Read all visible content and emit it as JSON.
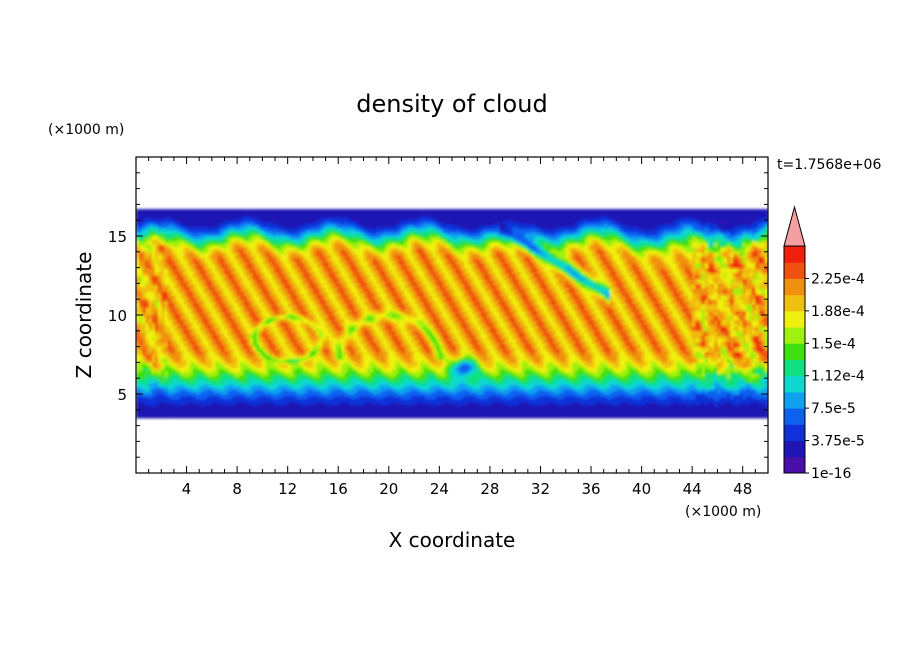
{
  "chart_data": {
    "type": "heatmap",
    "title": "density of cloud",
    "xlabel": "X coordinate",
    "ylabel": "Z coordinate",
    "x_unit": "(×1000 m)",
    "y_unit": "(×1000 m)",
    "time_label": "t=1.7568e+06",
    "xlim": [
      0,
      50
    ],
    "ylim": [
      0,
      20
    ],
    "x_ticks": [
      4,
      8,
      12,
      16,
      20,
      24,
      28,
      32,
      36,
      40,
      44,
      48
    ],
    "y_ticks": [
      5,
      10,
      15
    ],
    "colorbar": {
      "labels": [
        "1e-16",
        "3.75e-5",
        "7.5e-5",
        "1.12e-4",
        "1.5e-4",
        "1.88e-4",
        "2.25e-4"
      ],
      "levels": [
        1e-16,
        1.875e-05,
        3.75e-05,
        5.625e-05,
        7.5e-05,
        9.375e-05,
        0.0001125,
        0.00013125,
        0.00015,
        0.00016875,
        0.0001875,
        0.00020625,
        0.000225,
        0.00024375
      ],
      "colors": [
        "#4a0fa8",
        "#1f14b4",
        "#1030d8",
        "#1060f0",
        "#10a0f0",
        "#10d8d0",
        "#10e080",
        "#40e010",
        "#a0f010",
        "#f0f010",
        "#f0c010",
        "#f09010",
        "#f05010",
        "#f02010"
      ],
      "extend_color": "#f4a0a0"
    },
    "field_summary": {
      "cloud_base_z": 3.5,
      "cloud_top_z": 16.5,
      "core_value": 0.00023
    }
  }
}
